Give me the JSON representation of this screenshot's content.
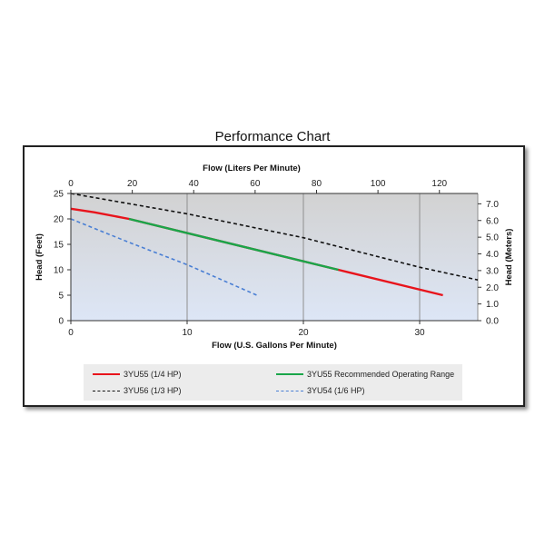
{
  "title": "Performance Chart",
  "chart_data": {
    "type": "line",
    "title": "Performance Chart",
    "xlabel": "Flow (U.S. Gallons Per Minute)",
    "x2label": "Flow (Liters Per Minute)",
    "ylabel": "Head (Feet)",
    "y2label": "Head (Meters)",
    "xlim": [
      0,
      35
    ],
    "ylim": [
      0,
      25
    ],
    "x2lim": [
      0,
      132.5
    ],
    "y2lim": [
      0,
      7.62
    ],
    "xticks": [
      0,
      10,
      20,
      30
    ],
    "yticks": [
      0,
      5,
      10,
      15,
      20,
      25
    ],
    "x2ticks": [
      0,
      20,
      40,
      60,
      80,
      100,
      120
    ],
    "y2ticks": [
      "0.0",
      "1.0",
      "2.0",
      "3.0",
      "4.0",
      "5.0",
      "6.0",
      "7.0"
    ],
    "grid": true,
    "legend_position": "bottom",
    "series": [
      {
        "name": "3YU55 (1/4 HP)",
        "color": "#e8141c",
        "dash": "solid",
        "x": [
          0,
          2,
          5,
          23,
          32
        ],
        "y": [
          22,
          21.3,
          20,
          10,
          5
        ]
      },
      {
        "name": "3YU55 Recommended Operating Range",
        "color": "#1aa64a",
        "dash": "solid",
        "x": [
          5,
          23
        ],
        "y": [
          20,
          10
        ]
      },
      {
        "name": "3YU56 (1/3 HP)",
        "color": "#111111",
        "dash": "dashed",
        "x": [
          0,
          10,
          20,
          30,
          35
        ],
        "y": [
          25,
          21,
          16.3,
          10.5,
          8
        ]
      },
      {
        "name": "3YU54 (1/6 HP)",
        "color": "#4a7fd4",
        "dash": "dashed",
        "x": [
          0,
          5,
          10,
          16
        ],
        "y": [
          20,
          15.4,
          11,
          5
        ]
      }
    ]
  }
}
